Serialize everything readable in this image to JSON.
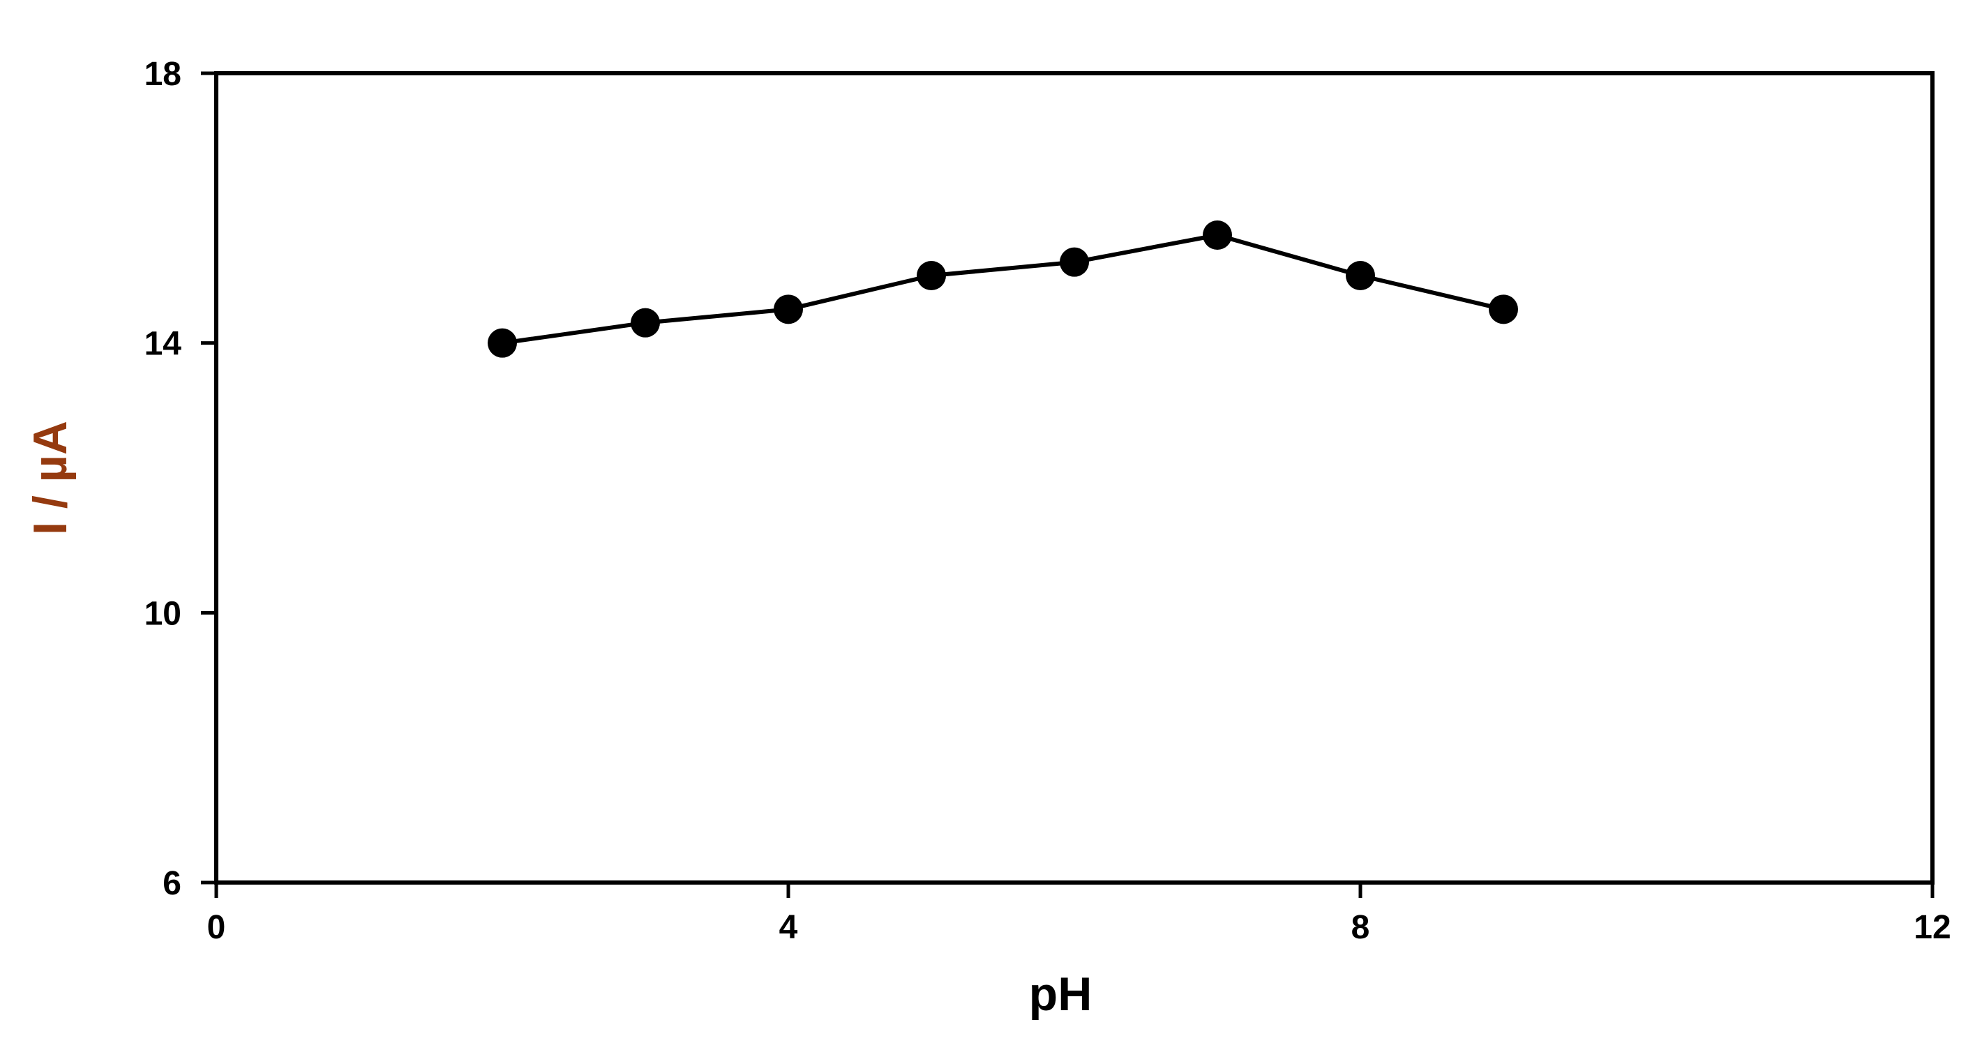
{
  "chart_data": {
    "type": "line",
    "title": "",
    "xlabel": "pH",
    "ylabel": "I / µA",
    "xlim": [
      0,
      12
    ],
    "ylim": [
      6,
      18
    ],
    "x_ticks": [
      0,
      4,
      8,
      12
    ],
    "y_ticks": [
      6,
      10,
      14,
      18
    ],
    "grid": false,
    "legend": "none",
    "series": [
      {
        "x": [
          2,
          3,
          4,
          5,
          6,
          7,
          8,
          9
        ],
        "y": [
          14.0,
          14.3,
          14.5,
          15.0,
          15.2,
          15.6,
          15.0,
          14.5
        ]
      }
    ],
    "colors": {
      "line": "#000000",
      "marker": "#000000",
      "ylabel": "#953a0f",
      "xlabel": "#000000"
    }
  }
}
